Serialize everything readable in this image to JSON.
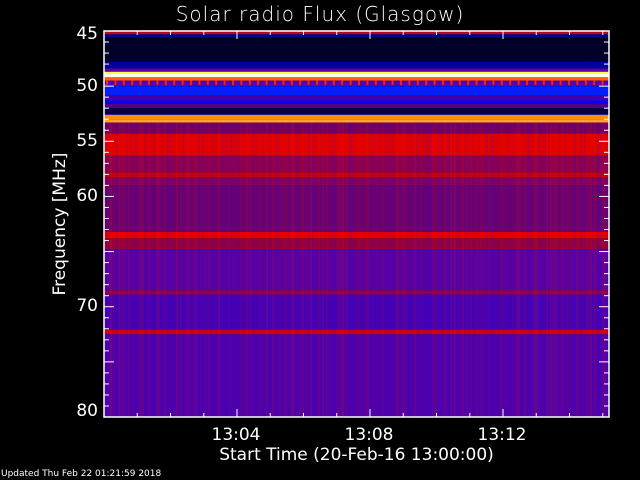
{
  "chart_data": {
    "type": "heatmap",
    "title": "Solar radio Flux (Glasgow)",
    "xlabel": "Start Time (20-Feb-16 13:00:00)",
    "ylabel": "Frequency [MHz]",
    "x_range_minutes": [
      "13:00",
      "13:15"
    ],
    "ylim": [
      45,
      80
    ],
    "y_inverted": true,
    "x_ticks": [
      "13:04",
      "13:08",
      "13:12"
    ],
    "y_ticks": [
      "45",
      "50",
      "55",
      "60",
      "70",
      "80"
    ],
    "grid": false,
    "colormap": "red-temperature (black-blue-purple-red-orange-yellow-white)",
    "bands": [
      {
        "f": [
          45.0,
          45.3
        ],
        "color": "#c00020"
      },
      {
        "f": [
          45.3,
          45.6
        ],
        "color": "#000090"
      },
      {
        "f": [
          45.6,
          47.8
        ],
        "color": "#000028"
      },
      {
        "f": [
          47.8,
          48.4
        ],
        "color": "#0000a0"
      },
      {
        "f": [
          48.4,
          48.7
        ],
        "color": "#6000a0"
      },
      {
        "f": [
          48.7,
          48.9
        ],
        "color": "#ffff40"
      },
      {
        "f": [
          48.9,
          49.2
        ],
        "color": "#ffffff"
      },
      {
        "f": [
          49.2,
          49.5
        ],
        "color": "#ff6000"
      },
      {
        "f": [
          49.5,
          50.0
        ],
        "color": "#5000c0"
      },
      {
        "f": [
          50.0,
          50.8
        ],
        "color": "#0020ff"
      },
      {
        "f": [
          50.8,
          51.3
        ],
        "color": "#4000b0"
      },
      {
        "f": [
          51.3,
          51.6
        ],
        "color": "#0000ff"
      },
      {
        "f": [
          51.6,
          52.0
        ],
        "color": "#500080"
      },
      {
        "f": [
          52.0,
          52.5
        ],
        "color": "#000040"
      },
      {
        "f": [
          52.5,
          52.6
        ],
        "color": "#0000c0"
      },
      {
        "f": [
          52.6,
          53.0
        ],
        "color": "#ff9000"
      },
      {
        "f": [
          53.0,
          53.3
        ],
        "color": "#ffa030"
      },
      {
        "f": [
          53.3,
          54.3
        ],
        "color": "#700060"
      },
      {
        "f": [
          54.3,
          56.3
        ],
        "color": "#e00000"
      },
      {
        "f": [
          56.3,
          57.8
        ],
        "color": "#8a0050"
      },
      {
        "f": [
          57.8,
          58.3
        ],
        "color": "#c00010"
      },
      {
        "f": [
          58.3,
          59.0
        ],
        "color": "#800060"
      },
      {
        "f": [
          59.0,
          63.2
        ],
        "color": "#6a0070"
      },
      {
        "f": [
          63.2,
          63.8
        ],
        "color": "#e00000"
      },
      {
        "f": [
          63.8,
          64.8
        ],
        "color": "#900040"
      },
      {
        "f": [
          64.8,
          68.5
        ],
        "color": "#5a00a0"
      },
      {
        "f": [
          68.5,
          68.9
        ],
        "color": "#900050"
      },
      {
        "f": [
          68.9,
          72.1
        ],
        "color": "#4800b0"
      },
      {
        "f": [
          72.1,
          72.5
        ],
        "color": "#d00010"
      },
      {
        "f": [
          72.5,
          80.0
        ],
        "color": "#5000a8"
      }
    ]
  },
  "footer": {
    "updated": "Updated Thu Feb 22 01:21:59 2018"
  }
}
